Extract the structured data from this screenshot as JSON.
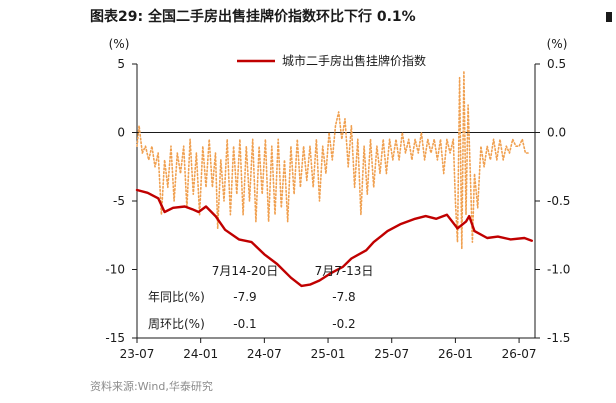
{
  "figure": {
    "title": "图表29:  全国二手房出售挂牌价指数环比下行 0.1%",
    "source": "资料来源:Wind,华泰研究"
  },
  "chart_data": {
    "type": "line",
    "title": "图表29:  全国二手房出售挂牌价指数环比下行 0.1%",
    "left_axis": {
      "unit": "(%)",
      "ylim": [
        -15,
        5
      ],
      "ticks": [
        5,
        0,
        -5,
        -10,
        -15
      ]
    },
    "right_axis": {
      "unit": "(%)",
      "ylim": [
        -1.5,
        0.5
      ],
      "ticks": [
        "0.5",
        "0.0",
        "-0.5",
        "-1.0",
        "-1.5"
      ],
      "tick_values": [
        0.5,
        0.0,
        -0.5,
        -1.0,
        -1.5
      ]
    },
    "x_ticks": [
      "23-07",
      "24-01",
      "24-07",
      "25-01",
      "25-07",
      "26-01",
      "26-07"
    ],
    "x_tick_t": [
      0,
      6,
      12,
      18,
      24,
      30,
      36
    ],
    "grid": false,
    "legend": {
      "position": "top-right",
      "entries": [
        "城市二手房出售挂牌价指数"
      ]
    },
    "series": [
      {
        "name": "城市二手房出售挂牌价指数",
        "axis": "left",
        "color": "#c00000",
        "points": [
          [
            0,
            -4.2
          ],
          [
            1,
            -4.4
          ],
          [
            2,
            -4.8
          ],
          [
            2.6,
            -5.8
          ],
          [
            3.4,
            -5.5
          ],
          [
            4.5,
            -5.4
          ],
          [
            5.2,
            -5.6
          ],
          [
            5.8,
            -5.8
          ],
          [
            6.5,
            -5.4
          ],
          [
            7.4,
            -6.1
          ],
          [
            8.3,
            -7.1
          ],
          [
            9.6,
            -7.8
          ],
          [
            10.8,
            -8.0
          ],
          [
            12,
            -8.9
          ],
          [
            13.2,
            -9.6
          ],
          [
            14.5,
            -10.6
          ],
          [
            15.5,
            -11.2
          ],
          [
            16.3,
            -11.1
          ],
          [
            17.2,
            -10.8
          ],
          [
            18.2,
            -10.3
          ],
          [
            19.4,
            -9.8
          ],
          [
            20.2,
            -9.2
          ],
          [
            21.6,
            -8.6
          ],
          [
            22.3,
            -8.0
          ],
          [
            23.6,
            -7.2
          ],
          [
            24.8,
            -6.7
          ],
          [
            26.2,
            -6.3
          ],
          [
            27.2,
            -6.1
          ],
          [
            28.2,
            -6.3
          ],
          [
            29.2,
            -6.0
          ],
          [
            30.2,
            -7.0
          ],
          [
            31,
            -6.5
          ],
          [
            31.3,
            -6.1
          ],
          [
            31.8,
            -7.2
          ],
          [
            33,
            -7.7
          ],
          [
            34,
            -7.6
          ],
          [
            35.2,
            -7.8
          ],
          [
            36.5,
            -7.7
          ],
          [
            37.2,
            -7.9
          ]
        ]
      },
      {
        "name": "",
        "axis": "right",
        "color": "#f0a050",
        "style": "dotted",
        "points": [
          [
            0,
            -0.1
          ],
          [
            0.2,
            0.05
          ],
          [
            0.5,
            -0.15
          ],
          [
            0.8,
            -0.1
          ],
          [
            1.1,
            -0.2
          ],
          [
            1.4,
            -0.1
          ],
          [
            1.7,
            -0.25
          ],
          [
            2.0,
            -0.15
          ],
          [
            2.3,
            -0.6
          ],
          [
            2.6,
            -0.2
          ],
          [
            2.9,
            -0.4
          ],
          [
            3.2,
            -0.1
          ],
          [
            3.5,
            -0.5
          ],
          [
            3.8,
            -0.15
          ],
          [
            4.1,
            -0.3
          ],
          [
            4.4,
            -0.1
          ],
          [
            4.7,
            -0.55
          ],
          [
            5.0,
            -0.05
          ],
          [
            5.3,
            -0.45
          ],
          [
            5.6,
            -0.15
          ],
          [
            5.9,
            -0.6
          ],
          [
            6.2,
            -0.1
          ],
          [
            6.5,
            -0.4
          ],
          [
            6.8,
            -0.05
          ],
          [
            7.1,
            -0.4
          ],
          [
            7.4,
            -0.15
          ],
          [
            7.6,
            -0.7
          ],
          [
            7.9,
            -0.2
          ],
          [
            8.2,
            -0.5
          ],
          [
            8.5,
            -0.05
          ],
          [
            8.8,
            -0.6
          ],
          [
            9.1,
            -0.1
          ],
          [
            9.4,
            -0.45
          ],
          [
            9.7,
            -0.05
          ],
          [
            10.0,
            -0.6
          ],
          [
            10.3,
            -0.1
          ],
          [
            10.6,
            -0.5
          ],
          [
            10.9,
            -0.05
          ],
          [
            11.2,
            -0.65
          ],
          [
            11.5,
            -0.1
          ],
          [
            11.8,
            -0.45
          ],
          [
            12.1,
            -0.05
          ],
          [
            12.4,
            -0.65
          ],
          [
            12.7,
            -0.1
          ],
          [
            13.0,
            -0.6
          ],
          [
            13.3,
            -0.05
          ],
          [
            13.6,
            -0.55
          ],
          [
            13.9,
            -0.2
          ],
          [
            14.2,
            -0.65
          ],
          [
            14.5,
            -0.1
          ],
          [
            14.8,
            -0.45
          ],
          [
            15.1,
            -0.05
          ],
          [
            15.4,
            -0.4
          ],
          [
            15.7,
            -0.1
          ],
          [
            16.0,
            -0.35
          ],
          [
            16.3,
            -0.1
          ],
          [
            16.6,
            -0.4
          ],
          [
            16.9,
            -0.05
          ],
          [
            17.2,
            -0.5
          ],
          [
            17.5,
            -0.1
          ],
          [
            17.8,
            -0.3
          ],
          [
            18.1,
            0.0
          ],
          [
            18.4,
            -0.2
          ],
          [
            18.7,
            0.05
          ],
          [
            19.0,
            0.15
          ],
          [
            19.3,
            -0.05
          ],
          [
            19.6,
            0.1
          ],
          [
            19.9,
            -0.25
          ],
          [
            20.2,
            0.05
          ],
          [
            20.5,
            -0.4
          ],
          [
            20.8,
            -0.05
          ],
          [
            21.1,
            -0.6
          ],
          [
            21.4,
            -0.1
          ],
          [
            21.7,
            -0.45
          ],
          [
            22.0,
            -0.05
          ],
          [
            22.3,
            -0.4
          ],
          [
            22.6,
            -0.1
          ],
          [
            22.9,
            -0.3
          ],
          [
            23.2,
            -0.05
          ],
          [
            23.5,
            -0.3
          ],
          [
            23.8,
            -0.05
          ],
          [
            24.1,
            -0.2
          ],
          [
            24.4,
            -0.05
          ],
          [
            24.7,
            -0.2
          ],
          [
            25.0,
            0.0
          ],
          [
            25.3,
            -0.15
          ],
          [
            25.6,
            -0.05
          ],
          [
            25.9,
            -0.2
          ],
          [
            26.2,
            -0.05
          ],
          [
            26.5,
            -0.15
          ],
          [
            26.8,
            0.0
          ],
          [
            27.1,
            -0.2
          ],
          [
            27.4,
            -0.05
          ],
          [
            27.7,
            -0.15
          ],
          [
            28.0,
            -0.05
          ],
          [
            28.3,
            -0.2
          ],
          [
            28.6,
            -0.05
          ],
          [
            28.9,
            -0.3
          ],
          [
            29.2,
            -0.05
          ],
          [
            29.5,
            -0.15
          ],
          [
            29.8,
            -0.05
          ],
          [
            30.0,
            -0.5
          ],
          [
            30.2,
            -0.8
          ],
          [
            30.4,
            0.4
          ],
          [
            30.6,
            -0.85
          ],
          [
            30.8,
            0.45
          ],
          [
            31.0,
            -0.6
          ],
          [
            31.2,
            0.2
          ],
          [
            31.4,
            -0.3
          ],
          [
            31.6,
            -0.8
          ],
          [
            31.8,
            -0.3
          ],
          [
            32.1,
            -0.55
          ],
          [
            32.4,
            -0.1
          ],
          [
            32.7,
            -0.25
          ],
          [
            33.0,
            -0.1
          ],
          [
            33.3,
            -0.2
          ],
          [
            33.6,
            -0.05
          ],
          [
            33.9,
            -0.2
          ],
          [
            34.2,
            -0.05
          ],
          [
            34.5,
            -0.2
          ],
          [
            34.8,
            -0.1
          ],
          [
            35.1,
            -0.15
          ],
          [
            35.4,
            -0.05
          ],
          [
            35.7,
            -0.1
          ],
          [
            36.0,
            -0.1
          ],
          [
            36.3,
            -0.05
          ],
          [
            36.6,
            -0.15
          ],
          [
            37.0,
            -0.15
          ]
        ]
      }
    ],
    "annotations": {
      "col_headers": [
        "7月14-20日",
        "7月7-13日"
      ],
      "rows": [
        {
          "label": "年同比(%)",
          "values": [
            "-7.9",
            "-7.8"
          ]
        },
        {
          "label": "周环比(%)",
          "values": [
            "-0.1",
            "-0.2"
          ]
        }
      ]
    }
  }
}
